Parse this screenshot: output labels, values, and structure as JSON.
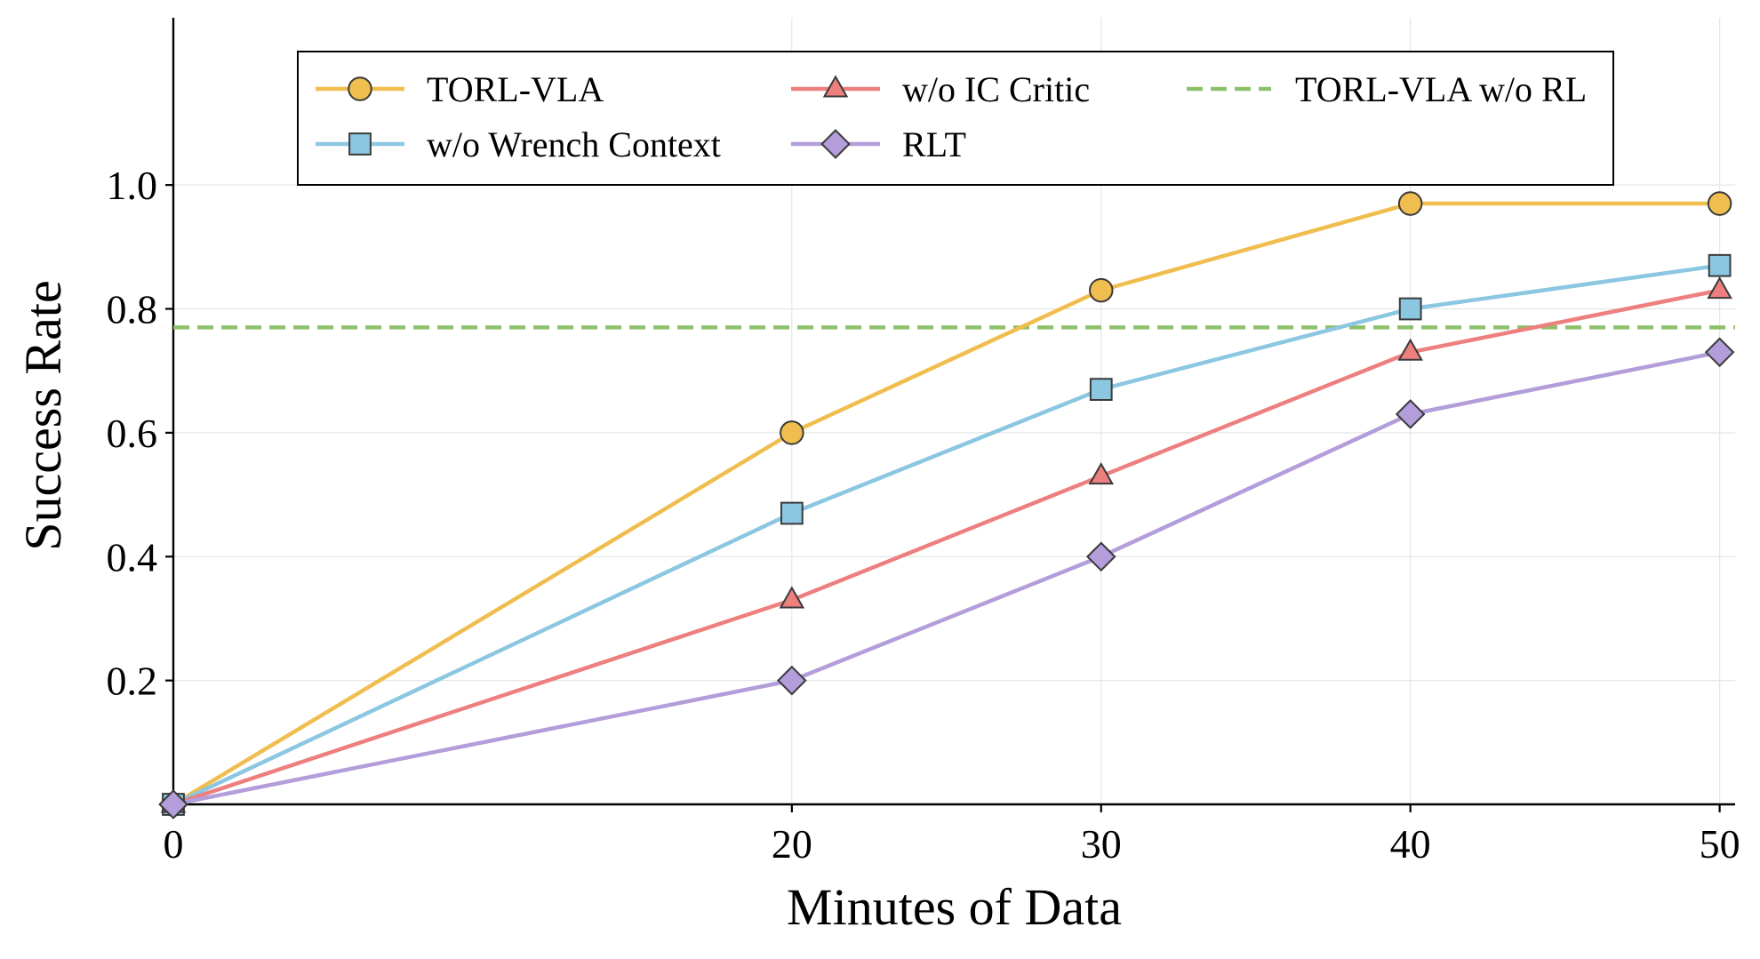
{
  "chart_data": {
    "type": "line",
    "title": "",
    "xlabel": "Minutes of Data",
    "ylabel": "Success Rate",
    "x": [
      0,
      20,
      30,
      40,
      50
    ],
    "xticks": [
      0,
      20,
      30,
      40,
      50
    ],
    "xtick_labels": [
      "0",
      "20",
      "30",
      "40",
      "50"
    ],
    "yticks": [
      0.2,
      0.4,
      0.6,
      0.8,
      1.0
    ],
    "ytick_labels": [
      "0.2",
      "0.4",
      "0.6",
      "0.8",
      "1.0"
    ],
    "xlim": [
      0,
      50.5
    ],
    "ylim": [
      0,
      1.27
    ],
    "grid": true,
    "legend_position": "top-center",
    "series": [
      {
        "name": "TORL-VLA",
        "values": [
          0.0,
          0.6,
          0.83,
          0.97,
          0.97
        ],
        "color": "#F0BE4E",
        "marker": "circle",
        "style": "solid"
      },
      {
        "name": "w/o Wrench Context",
        "values": [
          0.0,
          0.47,
          0.67,
          0.8,
          0.87
        ],
        "color": "#8BC7E1",
        "marker": "square",
        "style": "solid"
      },
      {
        "name": "w/o IC Critic",
        "values": [
          0.0,
          0.33,
          0.53,
          0.73,
          0.83
        ],
        "color": "#EE7F7F",
        "marker": "triangle",
        "style": "solid"
      },
      {
        "name": "RLT",
        "values": [
          0.0,
          0.2,
          0.4,
          0.63,
          0.73
        ],
        "color": "#B39DDA",
        "marker": "diamond",
        "style": "solid"
      }
    ],
    "reference_lines": [
      {
        "name": "TORL-VLA w/o RL",
        "value": 0.77,
        "color": "#8DC06A",
        "style": "dashed"
      }
    ]
  }
}
